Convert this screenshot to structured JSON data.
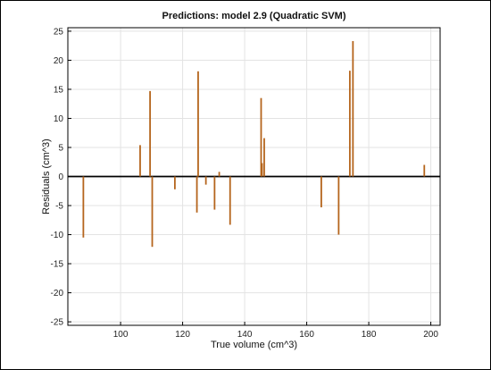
{
  "chart_data": {
    "type": "bar",
    "title": "Predictions: model 2.9 (Quadratic SVM)",
    "xlabel": "True volume (cm^3)",
    "ylabel": "Residuals (cm^3)",
    "xlim": [
      83,
      203
    ],
    "ylim": [
      -25.6,
      25.6
    ],
    "xticks": [
      100,
      120,
      140,
      160,
      180,
      200
    ],
    "yticks": [
      -25,
      -20,
      -15,
      -10,
      -5,
      0,
      5,
      10,
      15,
      20,
      25
    ],
    "grid": true,
    "legend": "none",
    "series": [
      {
        "color": "#b5651d",
        "x": [
          88,
          106.3,
          109.5,
          110.2,
          117.5,
          124.6,
          125.0,
          127.5,
          130.3,
          131.8,
          135.3,
          145.3,
          145.6,
          146.3,
          164.7,
          170.3,
          173.9,
          174.9,
          197.9
        ],
        "y": [
          -10.5,
          5.4,
          14.7,
          -12.1,
          -2.2,
          -6.2,
          18.1,
          -1.4,
          -5.7,
          0.8,
          -8.3,
          13.5,
          2.3,
          6.6,
          -5.3,
          -10.0,
          18.2,
          23.3,
          2.0
        ]
      }
    ],
    "zero_line": 0
  }
}
